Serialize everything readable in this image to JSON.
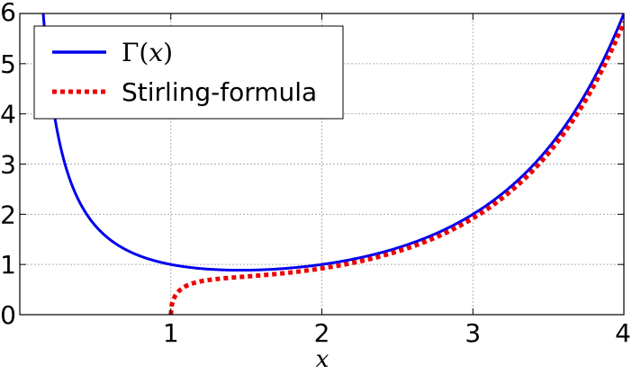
{
  "chart_data": {
    "type": "line",
    "xlabel": "x",
    "ylabel": "",
    "xlim": [
      0,
      4
    ],
    "ylim": [
      0,
      6
    ],
    "xticks": [
      1,
      2,
      3,
      4
    ],
    "yticks": [
      0,
      1,
      2,
      3,
      4,
      5,
      6
    ],
    "grid": true,
    "legend_position": "top-left",
    "series": [
      {
        "name_parts": [
          "Γ(",
          "x",
          ")"
        ],
        "color": "#0000ee",
        "style": "solid",
        "domain": [
          0.15,
          4
        ],
        "function": "gamma",
        "x": [
          0.15,
          0.2,
          0.3,
          0.5,
          0.75,
          1,
          1.5,
          2,
          2.5,
          3,
          3.5,
          4
        ],
        "y": [
          6.22,
          4.59,
          2.99,
          1.77,
          1.23,
          1,
          0.886,
          1,
          1.33,
          2,
          3.32,
          6
        ]
      },
      {
        "name": "Stirling-formula",
        "color": "#ee0000",
        "style": "dotted",
        "domain": [
          1,
          4
        ],
        "function": "stirling_shifted",
        "x": [
          1,
          1.05,
          1.2,
          1.5,
          2,
          2.5,
          3,
          3.5,
          4
        ],
        "y": [
          0,
          0.54,
          0.68,
          0.77,
          0.92,
          1.25,
          1.92,
          3.2,
          5.84
        ]
      }
    ]
  }
}
